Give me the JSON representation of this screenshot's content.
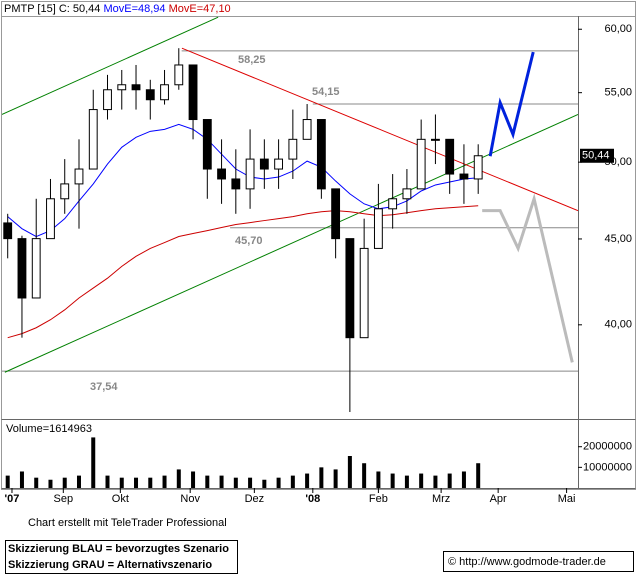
{
  "chart_data": [
    {
      "type": "candlestick",
      "title": "PMTP [15] C: 50,44",
      "last_label": "50,44",
      "x": [
        2,
        7,
        12,
        17,
        22,
        27,
        32,
        37,
        42,
        47,
        52,
        57,
        62,
        67,
        72,
        77,
        82,
        87,
        92,
        97,
        102,
        107,
        112,
        117,
        122,
        127,
        132,
        137,
        142,
        147,
        152,
        157,
        162,
        167
      ],
      "open": [
        46.0,
        45.02,
        41.5,
        45.02,
        47.55,
        48.53,
        49.53,
        53.74,
        55.22,
        55.6,
        55.22,
        54.47,
        55.6,
        57.13,
        53.01,
        49.53,
        48.86,
        48.2,
        50.21,
        49.53,
        50.21,
        51.59,
        53.01,
        48.2,
        45.02,
        39.3,
        44.42,
        46.9,
        47.55,
        48.2,
        51.59,
        51.59,
        49.19,
        48.86
      ],
      "high": [
        46.58,
        45.2,
        47.55,
        48.86,
        50.21,
        51.59,
        55.22,
        56.36,
        56.74,
        57.13,
        55.98,
        56.74,
        58.46,
        57.13,
        53.01,
        51.59,
        50.89,
        52.3,
        51.59,
        51.59,
        53.74,
        54.15,
        53.01,
        48.2,
        45.02,
        46.27,
        48.53,
        49.19,
        49.53,
        53.01,
        53.38,
        51.59,
        51.24,
        51.24
      ],
      "low": [
        43.82,
        39.3,
        41.5,
        45.02,
        46.58,
        45.64,
        49.53,
        53.01,
        53.74,
        53.74,
        53.01,
        54.11,
        55.22,
        51.59,
        47.55,
        47.22,
        46.58,
        46.9,
        48.2,
        48.2,
        48.86,
        51.59,
        47.55,
        43.82,
        35.49,
        39.3,
        44.42,
        45.64,
        46.58,
        48.2,
        49.87,
        47.87,
        47.22,
        47.87
      ],
      "close": [
        45.02,
        41.5,
        45.02,
        47.55,
        48.53,
        49.53,
        53.74,
        55.22,
        55.6,
        55.22,
        54.47,
        55.6,
        57.13,
        53.01,
        49.53,
        48.86,
        48.2,
        50.21,
        49.53,
        50.21,
        51.59,
        53.01,
        48.2,
        45.02,
        39.3,
        44.42,
        46.9,
        47.55,
        48.2,
        51.59,
        51.59,
        49.19,
        48.86,
        50.44
      ],
      "up_color": "#ffffff",
      "down_color": "#000000",
      "series": [
        {
          "name": "MovE=48,94",
          "color": "#0000ff",
          "values": [
            46.4,
            45.64,
            45.15,
            45.52,
            46.27,
            47.41,
            48.53,
            49.87,
            51.03,
            51.73,
            52.16,
            52.3,
            52.66,
            52.3,
            51.59,
            50.55,
            49.53,
            48.99,
            48.86,
            48.99,
            49.39,
            50.07,
            49.66,
            48.72,
            47.87,
            47.22,
            46.9,
            47.03,
            47.41,
            48.06,
            48.46,
            48.66,
            48.86,
            48.94
          ]
        },
        {
          "name": "MovE=47,10",
          "color": "#cc0000",
          "values": [
            39.3,
            39.52,
            39.84,
            40.28,
            40.83,
            41.5,
            42.07,
            42.64,
            43.34,
            43.94,
            44.42,
            44.78,
            45.15,
            45.34,
            45.52,
            45.71,
            45.9,
            46.02,
            46.15,
            46.27,
            46.4,
            46.58,
            46.71,
            46.78,
            46.71,
            46.58,
            46.46,
            46.52,
            46.65,
            46.78,
            46.9,
            46.97,
            47.03,
            47.1
          ]
        }
      ],
      "xlim": [
        0,
        202
      ],
      "xticks": [
        {
          "value": 3.5,
          "label": "'07"
        },
        {
          "value": 21.5,
          "label": "Sep"
        },
        {
          "value": 41.5,
          "label": "Okt"
        },
        {
          "value": 66,
          "label": "Nov"
        },
        {
          "value": 88.5,
          "label": "Dez"
        },
        {
          "value": 109,
          "label": "'08"
        },
        {
          "value": 132,
          "label": "Feb"
        },
        {
          "value": 154,
          "label": "Mrz"
        },
        {
          "value": 174,
          "label": "Apr"
        },
        {
          "value": 198,
          "label": "Mai"
        }
      ],
      "ylim": [
        35.2,
        61.1
      ],
      "log_scale": true,
      "yticks": [
        {
          "value": 40,
          "label": "40,00"
        },
        {
          "value": 45,
          "label": "45,00"
        },
        {
          "value": 50,
          "label": "50,00"
        },
        {
          "value": 55,
          "label": "55,00"
        },
        {
          "value": 60,
          "label": "60,00"
        }
      ],
      "levels": [
        {
          "value": 58.25,
          "label": "58,25",
          "from": 63
        },
        {
          "value": 54.15,
          "label": "54,15",
          "from": 109
        },
        {
          "value": 45.7,
          "label": "45,70",
          "from": 80
        },
        {
          "value": 37.54,
          "label": "37,54",
          "from": 0
        }
      ],
      "trendlines": [
        {
          "color": "#008000",
          "x": [
            0,
            75.8
          ],
          "y": [
            53.38,
            61.0
          ]
        },
        {
          "color": "#008000",
          "x": [
            1,
            202
          ],
          "y": [
            37.48,
            53.38
          ]
        },
        {
          "color": "#dd0000",
          "x": [
            63.1,
            202
          ],
          "y": [
            58.46,
            46.78
          ]
        }
      ],
      "scenarios": [
        {
          "color": "#0022dd",
          "x": [
            171.2,
            174.7,
            179.2,
            186.3
          ],
          "y": [
            50.41,
            54.25,
            51.94,
            58.15
          ]
        },
        {
          "color": "#bbbbbb",
          "x": [
            168.4,
            174.7,
            181.0,
            186.6,
            200.0
          ],
          "y": [
            46.78,
            46.78,
            44.42,
            47.55,
            37.99
          ]
        }
      ]
    },
    {
      "type": "bar",
      "title": "Volume=1614963",
      "x": [
        2,
        7,
        12,
        17,
        22,
        27,
        32,
        37,
        42,
        47,
        52,
        57,
        62,
        67,
        72,
        77,
        82,
        87,
        92,
        97,
        102,
        107,
        112,
        117,
        122,
        127,
        132,
        137,
        142,
        147,
        152,
        157,
        162,
        167
      ],
      "values": [
        6000000,
        8000000,
        5000000,
        4000000,
        5000000,
        6000000,
        24500000,
        6000000,
        5000000,
        5000000,
        5000000,
        6000000,
        9000000,
        8000000,
        6000000,
        6000000,
        5000000,
        5000000,
        4000000,
        5000000,
        6000000,
        7000000,
        10000000,
        9000000,
        15500000,
        12000000,
        8000000,
        7000000,
        6000000,
        7000000,
        6000000,
        7000000,
        8000000,
        12000000
      ],
      "color": "#000000",
      "xlim": [
        0,
        202
      ],
      "ylim": [
        0,
        31000000
      ],
      "yticks": [
        10000000,
        20000000
      ]
    }
  ],
  "footer": {
    "credit": "Chart erstellt mit TeleTrader Professional",
    "legend": [
      "Skizzierung BLAU = bevorzugtes Szenario",
      "Skizzierung GRAU = Alternativszenario"
    ],
    "source": "© http://www.godmode-trader.de"
  }
}
